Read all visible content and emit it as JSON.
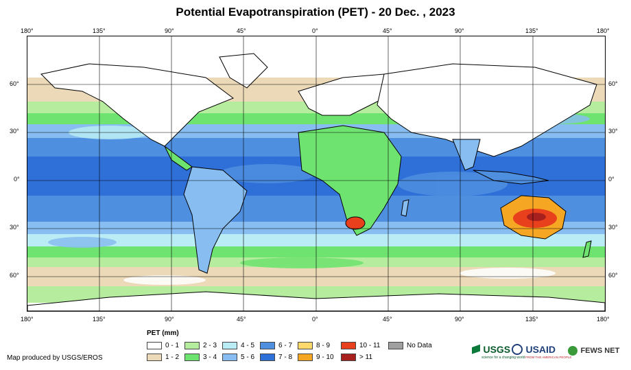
{
  "title": "Potential Evapotranspiration (PET) - 20 Dec. , 2023",
  "axes": {
    "top_labels": [
      "180°",
      "135°",
      "90°",
      "45°",
      "0°",
      "45°",
      "90°",
      "135°",
      "180°"
    ],
    "bottom_labels": [
      "180°",
      "135°",
      "90°",
      "45°",
      "0°",
      "45°",
      "90°",
      "135°",
      "180°"
    ],
    "left_labels": [
      "60°",
      "30°",
      "0°",
      "30°",
      "60°"
    ],
    "right_labels": [
      "60°",
      "30°",
      "0°",
      "30°",
      "60°"
    ]
  },
  "legend": {
    "title": "PET (mm)",
    "items": [
      {
        "label": "0 - 1",
        "color": "#ffffff"
      },
      {
        "label": "1 - 2",
        "color": "#ecd9b8"
      },
      {
        "label": "2 - 3",
        "color": "#b6ec9e"
      },
      {
        "label": "3 - 4",
        "color": "#6fe36f"
      },
      {
        "label": "4 - 5",
        "color": "#b9ecf5"
      },
      {
        "label": "5 - 6",
        "color": "#87bdf0"
      },
      {
        "label": "6 - 7",
        "color": "#4f8fe0"
      },
      {
        "label": "7 - 8",
        "color": "#2f6fd8"
      },
      {
        "label": "8 - 9",
        "color": "#ffd96b"
      },
      {
        "label": "9 - 10",
        "color": "#f5a623"
      },
      {
        "label": "10 - 11",
        "color": "#e8401c"
      },
      {
        "label": "> 11",
        "color": "#a8201e"
      },
      {
        "label": "No Data",
        "color": "#a0a0a0"
      }
    ]
  },
  "credit": "Map produced by USGS/EROS",
  "logos": {
    "usgs": "USGS",
    "usgs_tagline": "science for a changing world",
    "usaid": "USAID",
    "usaid_tagline": "FROM THE AMERICAN PEOPLE",
    "fews": "FEWS NET"
  }
}
